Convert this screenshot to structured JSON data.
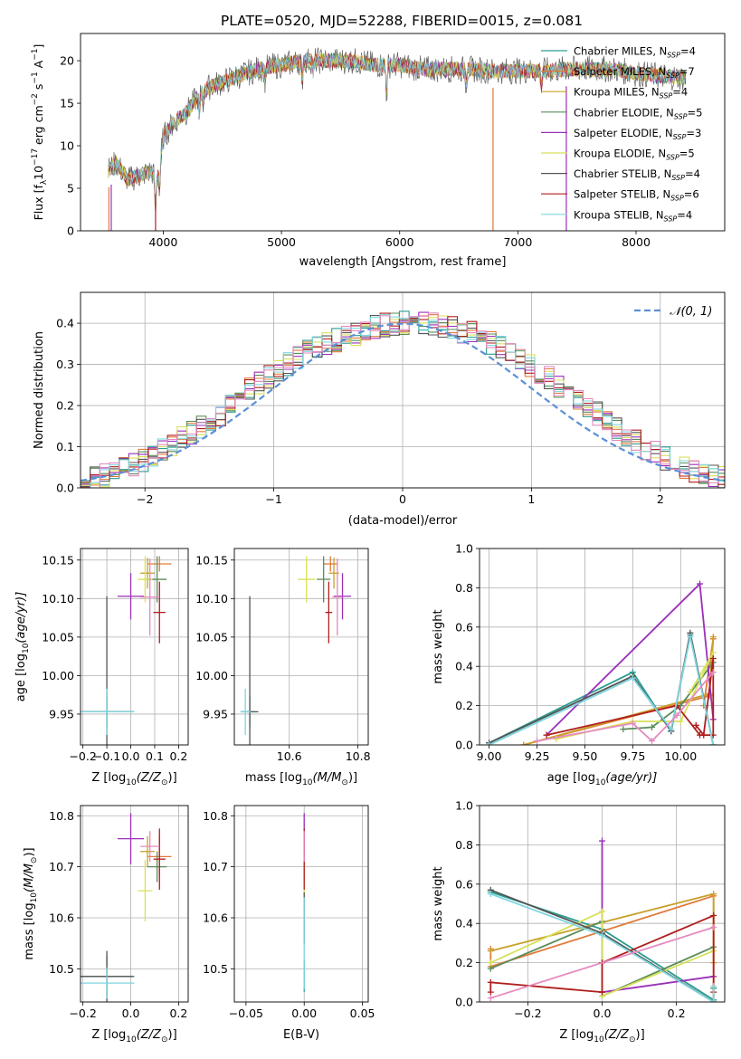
{
  "figure_title": "PLATE=0520, MJD=52288, FIBERID=0015, z=0.081",
  "colors": {
    "c0": "#2a9d8f",
    "c1": "#e07b39",
    "c2": "#c8a02a",
    "c3": "#5b8c5a",
    "c4": "#9b30b8",
    "c5": "#d8e05a",
    "c6": "#555555",
    "c7": "#b01e1e",
    "c8": "#7fd6e0",
    "extra_pink": "#e58ac0",
    "gauss": "#5b8fd6",
    "grid": "#b0b0b0"
  },
  "chart_data": [
    {
      "id": "spectrum",
      "type": "line",
      "title": "PLATE=0520, MJD=52288, FIBERID=0015, z=0.081",
      "xlabel": "wavelength [Angstrom, rest frame]",
      "ylabel_prefix": "Flux [f",
      "ylabel_suffix": "10",
      "ylabel_rest": " erg cm",
      "ylabel_units": " s",
      "xlim": [
        3300,
        8750
      ],
      "ylim": [
        0,
        23.2
      ],
      "xticks": [
        4000,
        5000,
        6000,
        7000,
        8000
      ],
      "yticks": [
        0,
        5,
        10,
        15,
        20
      ],
      "grid": false,
      "legend_position": "upper right",
      "legend": [
        {
          "base": "Chabrier MILES, N",
          "sub": "SSP",
          "suffix": "=4"
        },
        {
          "base": "Salpeter MILES, N",
          "sub": "SSP",
          "suffix": "=7"
        },
        {
          "base": "Kroupa MILES, N",
          "sub": "SSP",
          "suffix": "=4"
        },
        {
          "base": "Chabrier ELODIE, N",
          "sub": "SSP",
          "suffix": "=5"
        },
        {
          "base": "Salpeter ELODIE, N",
          "sub": "SSP",
          "suffix": "=3"
        },
        {
          "base": "Kroupa ELODIE, N",
          "sub": "SSP",
          "suffix": "=5"
        },
        {
          "base": "Chabrier STELIB, N",
          "sub": "SSP",
          "suffix": "=4"
        },
        {
          "base": "Salpeter STELIB, N",
          "sub": "SSP",
          "suffix": "=6"
        },
        {
          "base": "Kroupa STELIB, N",
          "sub": "SSP",
          "suffix": "=4"
        }
      ],
      "continuum_knots": {
        "x": [
          3530,
          3600,
          3700,
          3800,
          3900,
          3950,
          4000,
          4100,
          4200,
          4300,
          4400,
          4500,
          4600,
          4700,
          4800,
          5000,
          5200,
          5400,
          5600,
          5800,
          6000,
          6200,
          6400,
          6600,
          6800,
          7000,
          7200,
          7400,
          7600,
          7800,
          8000,
          8200,
          8400
        ],
        "y": [
          7,
          8,
          6,
          6.5,
          7,
          6,
          11,
          13,
          14,
          16,
          17,
          17.5,
          18,
          18.5,
          19,
          19.5,
          20,
          20,
          20,
          19.5,
          19.5,
          19,
          19,
          19,
          18.8,
          18.8,
          18.8,
          19,
          19,
          19,
          18.5,
          18.2,
          18
        ]
      },
      "absorption_dips": {
        "x": [
          3934,
          3969,
          4102,
          4304,
          4340,
          4861,
          5175,
          5270,
          5890,
          6563,
          7200
        ],
        "depth": [
          3.5,
          3,
          1.2,
          2.2,
          1.2,
          1.5,
          2.5,
          1.2,
          3.5,
          1.8,
          2
        ]
      },
      "sky_spikes": {
        "x": [
          3540,
          3560,
          3935,
          6790,
          7410
        ],
        "y": [
          0,
          0,
          0,
          0,
          0
        ]
      }
    },
    {
      "id": "residuals",
      "type": "histogram",
      "xlabel": "(data-model)/error",
      "ylabel": "Normed distribution",
      "xlim": [
        -2.5,
        2.5
      ],
      "ylim": [
        0,
        0.475
      ],
      "xticks": [
        -2,
        -1,
        0,
        1,
        2
      ],
      "yticks": [
        0,
        0.1,
        0.2,
        0.3,
        0.4
      ],
      "grid": true,
      "legend_position": "upper right",
      "legend_label": "𝒩(0, 1)",
      "bin_width": 0.1,
      "bin_start": -2.5,
      "series_base": [
        0.018,
        0.022,
        0.03,
        0.038,
        0.048,
        0.055,
        0.065,
        0.078,
        0.09,
        0.104,
        0.12,
        0.135,
        0.15,
        0.166,
        0.18,
        0.2,
        0.22,
        0.24,
        0.255,
        0.27,
        0.285,
        0.3,
        0.315,
        0.33,
        0.34,
        0.35,
        0.36,
        0.37,
        0.375,
        0.385,
        0.39,
        0.395,
        0.4,
        0.4,
        0.405,
        0.4,
        0.4,
        0.395,
        0.39,
        0.38,
        0.375,
        0.365,
        0.35,
        0.34,
        0.325,
        0.31,
        0.295,
        0.28,
        0.265,
        0.245,
        0.23,
        0.21,
        0.195,
        0.18,
        0.16,
        0.145,
        0.13,
        0.112,
        0.098,
        0.084,
        0.072,
        0.058,
        0.05,
        0.04,
        0.032,
        0.026,
        0.022
      ]
    },
    {
      "id": "age_vs_Z",
      "type": "scatter",
      "xlabel_pre": "Z [log",
      "xlabel_sub": "10",
      "xlabel_post": "(Z/Z",
      "xlabel_end": ")]",
      "ylabel_pre": "age  [log",
      "ylabel_sub": "10",
      "ylabel_post": "(age/yr)]",
      "xlim": [
        -0.21,
        0.24
      ],
      "ylim": [
        9.91,
        10.165
      ],
      "xticks": [
        -0.2,
        -0.1,
        0.0,
        0.1,
        0.2
      ],
      "yticks": [
        9.95,
        10.0,
        10.05,
        10.1,
        10.15
      ],
      "grid": true,
      "points": [
        {
          "x": -0.1,
          "y": 9.953,
          "xerr": 0.23,
          "yerr": 0.02
        },
        {
          "x": 0.12,
          "y": 10.145,
          "xerr": 0.1,
          "yerr": 0.01
        },
        {
          "x": 0.07,
          "y": 10.133,
          "xerr": 0.06,
          "yerr": 0.02
        },
        {
          "x": 0.11,
          "y": 10.125,
          "xerr": 0.08,
          "yerr": 0.03
        },
        {
          "x": 0.0,
          "y": 10.103,
          "xerr": 0.11,
          "yerr": 0.03
        },
        {
          "x": 0.06,
          "y": 10.125,
          "xerr": 0.06,
          "yerr": 0.03
        },
        {
          "x": -0.1,
          "y": 9.953,
          "xerr": 0.22,
          "yerr": 0.15
        },
        {
          "x": 0.12,
          "y": 10.082,
          "xerr": 0.05,
          "yerr": 0.04
        },
        {
          "x": -0.1,
          "y": 9.953,
          "xerr": 0.23,
          "yerr": 0.03
        },
        {
          "x": 0.08,
          "y": 10.102,
          "xerr": 0.08,
          "yerr": 0.05
        }
      ]
    },
    {
      "id": "age_vs_mass",
      "type": "scatter",
      "xlabel_pre": "mass [log",
      "xlabel_sub": "10",
      "xlabel_post": "(M/M",
      "xlabel_end": ")]",
      "xlim": [
        10.44,
        10.83
      ],
      "ylim": [
        9.91,
        10.165
      ],
      "xticks": [
        10.6,
        10.8
      ],
      "yticks": [
        9.95,
        10.0,
        10.05,
        10.1,
        10.15
      ],
      "grid": true,
      "points": [
        {
          "x": 10.485,
          "y": 9.953,
          "xerr": 0.04,
          "yerr": 0.02
        },
        {
          "x": 10.72,
          "y": 10.145,
          "xerr": 0.04,
          "yerr": 0.01
        },
        {
          "x": 10.73,
          "y": 10.133,
          "xerr": 0.03,
          "yerr": 0.02
        },
        {
          "x": 10.7,
          "y": 10.125,
          "xerr": 0.04,
          "yerr": 0.03
        },
        {
          "x": 10.755,
          "y": 10.103,
          "xerr": 0.05,
          "yerr": 0.03
        },
        {
          "x": 10.65,
          "y": 10.125,
          "xerr": 0.05,
          "yerr": 0.03
        },
        {
          "x": 10.485,
          "y": 9.953,
          "xerr": 0.05,
          "yerr": 0.15
        },
        {
          "x": 10.715,
          "y": 10.082,
          "xerr": 0.02,
          "yerr": 0.04
        },
        {
          "x": 10.472,
          "y": 9.953,
          "xerr": 0.03,
          "yerr": 0.03
        },
        {
          "x": 10.74,
          "y": 10.102,
          "xerr": 0.03,
          "yerr": 0.05
        }
      ]
    },
    {
      "id": "mass_weight_vs_age",
      "type": "line",
      "xlabel_pre": "age  [log",
      "xlabel_sub": "10",
      "xlabel_post": "(age/yr)]",
      "ylabel": "mass weight",
      "xlim": [
        8.95,
        10.23
      ],
      "ylim": [
        0,
        1
      ],
      "xticks": [
        9.0,
        9.25,
        9.5,
        9.75,
        10.0
      ],
      "yticks": [
        0.0,
        0.2,
        0.4,
        0.6,
        0.8,
        1.0
      ],
      "grid": true,
      "series": [
        {
          "points": [
            [
              9.0,
              0.01
            ],
            [
              9.75,
              0.37
            ],
            [
              9.95,
              0.07
            ],
            [
              10.05,
              0.56
            ],
            [
              10.17,
              0.0
            ]
          ]
        },
        {
          "points": [
            [
              9.18,
              0.0
            ],
            [
              10.15,
              0.25
            ],
            [
              10.17,
              0.54
            ],
            [
              10.12,
              0.2
            ]
          ]
        },
        {
          "points": [
            [
              9.18,
              0.0
            ],
            [
              10.15,
              0.26
            ],
            [
              10.17,
              0.55
            ]
          ]
        },
        {
          "points": [
            [
              9.7,
              0.08
            ],
            [
              9.85,
              0.09
            ],
            [
              10.0,
              0.2
            ],
            [
              10.17,
              0.42
            ]
          ]
        },
        {
          "points": [
            [
              9.3,
              0.05
            ],
            [
              10.1,
              0.82
            ],
            [
              10.17,
              0.13
            ]
          ]
        },
        {
          "points": [
            [
              9.35,
              0.03
            ],
            [
              9.75,
              0.12
            ],
            [
              10.0,
              0.12
            ],
            [
              10.17,
              0.47
            ],
            [
              10.05,
              0.27
            ]
          ]
        },
        {
          "points": [
            [
              9.0,
              0.01
            ],
            [
              9.75,
              0.35
            ],
            [
              9.95,
              0.07
            ],
            [
              10.05,
              0.57
            ],
            [
              10.17,
              0.0
            ]
          ]
        },
        {
          "points": [
            [
              9.3,
              0.05
            ],
            [
              9.98,
              0.2
            ],
            [
              10.1,
              0.05
            ],
            [
              10.17,
              0.05
            ],
            [
              10.17,
              0.44
            ],
            [
              10.12,
              0.05
            ],
            [
              10.08,
              0.1
            ]
          ]
        },
        {
          "points": [
            [
              9.0,
              0.0
            ],
            [
              9.75,
              0.34
            ],
            [
              9.95,
              0.08
            ],
            [
              10.05,
              0.55
            ],
            [
              10.17,
              0.0
            ]
          ]
        },
        {
          "points": [
            [
              9.25,
              0.02
            ],
            [
              9.75,
              0.11
            ],
            [
              9.85,
              0.02
            ],
            [
              9.98,
              0.15
            ],
            [
              10.17,
              0.37
            ]
          ]
        }
      ]
    },
    {
      "id": "mass_vs_Z",
      "type": "scatter",
      "xlabel_pre": "Z [log",
      "xlabel_sub": "10",
      "xlabel_post": "(Z/Z",
      "xlabel_end": ")]",
      "ylabel_pre": "mass [log",
      "ylabel_sub": "10",
      "ylabel_post": "(M/M",
      "ylabel_end": ")]",
      "xlim": [
        -0.21,
        0.24
      ],
      "ylim": [
        10.435,
        10.82
      ],
      "xticks": [
        -0.2,
        0.0,
        0.2
      ],
      "yticks": [
        10.5,
        10.6,
        10.7,
        10.8
      ],
      "grid": true,
      "points": [
        {
          "x": -0.1,
          "y": 10.485,
          "xerr": 0.23,
          "yerr": 0.04
        },
        {
          "x": 0.12,
          "y": 10.72,
          "xerr": 0.1,
          "yerr": 0.04
        },
        {
          "x": 0.07,
          "y": 10.73,
          "xerr": 0.06,
          "yerr": 0.03
        },
        {
          "x": 0.11,
          "y": 10.7,
          "xerr": 0.08,
          "yerr": 0.03
        },
        {
          "x": 0.0,
          "y": 10.755,
          "xerr": 0.11,
          "yerr": 0.05
        },
        {
          "x": 0.06,
          "y": 10.653,
          "xerr": 0.06,
          "yerr": 0.06
        },
        {
          "x": -0.1,
          "y": 10.485,
          "xerr": 0.22,
          "yerr": 0.05
        },
        {
          "x": 0.12,
          "y": 10.715,
          "xerr": 0.05,
          "yerr": 0.06
        },
        {
          "x": -0.1,
          "y": 10.472,
          "xerr": 0.23,
          "yerr": 0.03
        },
        {
          "x": 0.08,
          "y": 10.74,
          "xerr": 0.08,
          "yerr": 0.03
        }
      ]
    },
    {
      "id": "mass_vs_ebv",
      "type": "scatter",
      "xlabel": "E(B-V)",
      "xlim": [
        -0.06,
        0.055
      ],
      "ylim": [
        10.435,
        10.82
      ],
      "xticks": [
        -0.05,
        0.0,
        0.05
      ],
      "yticks": [
        10.5,
        10.6,
        10.7,
        10.8
      ],
      "grid": true,
      "points": [
        {
          "x": 0.0,
          "y": 10.485,
          "xerr": 0.0,
          "yerr": 0.03
        },
        {
          "x": 0.0,
          "y": 10.72,
          "xerr": 0.0,
          "yerr": 0.03
        },
        {
          "x": 0.0,
          "y": 10.73,
          "xerr": 0.0,
          "yerr": 0.03
        },
        {
          "x": 0.0,
          "y": 10.7,
          "xerr": 0.0,
          "yerr": 0.03
        },
        {
          "x": 0.0,
          "y": 10.755,
          "xerr": 0.0,
          "yerr": 0.05
        },
        {
          "x": 0.0,
          "y": 10.653,
          "xerr": 0.0,
          "yerr": 0.06
        },
        {
          "x": 0.0,
          "y": 10.6,
          "xerr": 0.0,
          "yerr": 0.05
        },
        {
          "x": 0.0,
          "y": 10.715,
          "xerr": 0.0,
          "yerr": 0.06
        },
        {
          "x": 0.0,
          "y": 10.55,
          "xerr": 0.0,
          "yerr": 0.09
        },
        {
          "x": 0.0,
          "y": 10.74,
          "xerr": 0.0,
          "yerr": 0.03
        }
      ]
    },
    {
      "id": "mass_weight_vs_Z",
      "type": "line",
      "xlabel_pre": "Z [log",
      "xlabel_sub": "10",
      "xlabel_post": "(Z/Z",
      "xlabel_end": ")]",
      "ylabel": "mass weight",
      "xlim": [
        -0.33,
        0.33
      ],
      "ylim": [
        0,
        1
      ],
      "xticks": [
        -0.2,
        0.0,
        0.2
      ],
      "yticks": [
        0.0,
        0.2,
        0.4,
        0.6,
        0.8,
        1.0
      ],
      "grid": true,
      "series": [
        {
          "points": [
            [
              -0.3,
              0.56
            ],
            [
              0.0,
              0.37
            ],
            [
              0.3,
              0.01
            ],
            [
              0.3,
              0.07
            ]
          ]
        },
        {
          "points": [
            [
              -0.3,
              0.27
            ],
            [
              -0.3,
              0.18
            ],
            [
              0.3,
              0.54
            ],
            [
              0.3,
              0.0
            ]
          ]
        },
        {
          "points": [
            [
              -0.3,
              0.26
            ],
            [
              0.3,
              0.55
            ],
            [
              0.3,
              0.2
            ]
          ]
        },
        {
          "points": [
            [
              -0.3,
              0.17
            ],
            [
              0.0,
              0.41
            ],
            [
              0.0,
              0.03
            ],
            [
              0.3,
              0.28
            ]
          ]
        },
        {
          "points": [
            [
              0.0,
              0.82
            ],
            [
              0.0,
              0.05
            ],
            [
              0.3,
              0.13
            ]
          ]
        },
        {
          "points": [
            [
              -0.3,
              0.2
            ],
            [
              0.0,
              0.46
            ],
            [
              0.0,
              0.03
            ],
            [
              0.3,
              0.26
            ]
          ]
        },
        {
          "points": [
            [
              -0.3,
              0.57
            ],
            [
              0.0,
              0.35
            ],
            [
              0.3,
              0.0
            ]
          ]
        },
        {
          "points": [
            [
              -0.3,
              0.05
            ],
            [
              -0.3,
              0.1
            ],
            [
              0.0,
              0.05
            ],
            [
              0.0,
              0.2
            ],
            [
              0.3,
              0.44
            ],
            [
              0.3,
              0.05
            ]
          ]
        },
        {
          "points": [
            [
              -0.3,
              0.55
            ],
            [
              0.0,
              0.34
            ],
            [
              0.3,
              0.0
            ],
            [
              0.3,
              0.08
            ]
          ]
        },
        {
          "points": [
            [
              -0.3,
              0.02
            ],
            [
              0.3,
              0.38
            ]
          ]
        }
      ]
    }
  ]
}
